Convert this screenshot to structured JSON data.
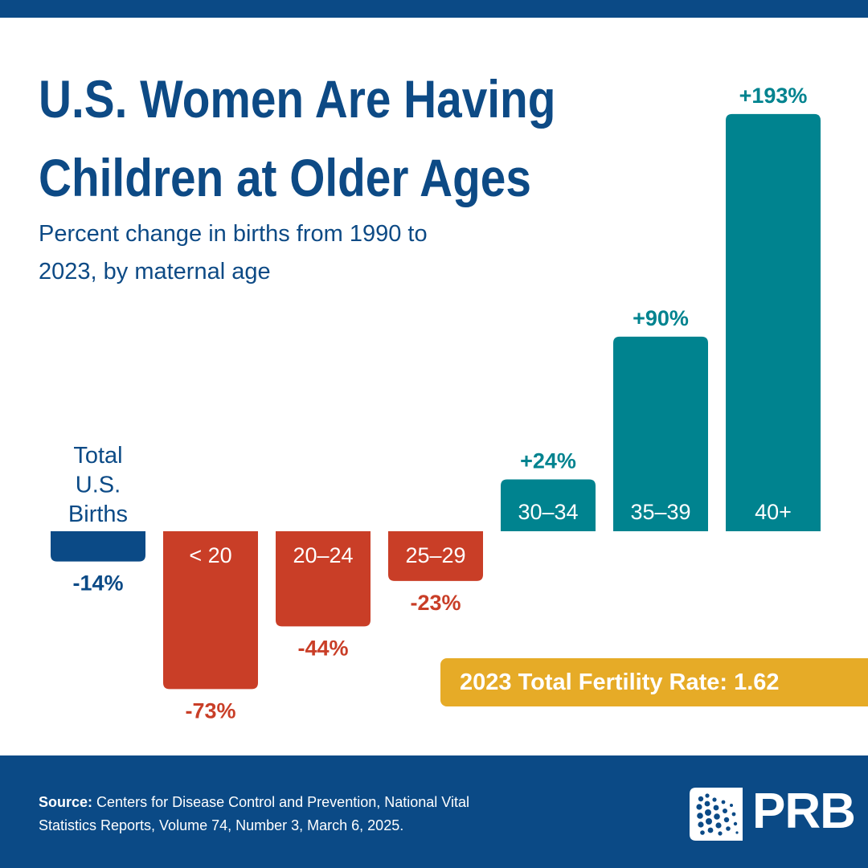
{
  "title": {
    "line1": "U.S. Women Are Having",
    "line2": "Children at Older Ages"
  },
  "subtitle": {
    "line1": "Percent change in births from 1990 to",
    "line2": "2023, by maternal age"
  },
  "chart_data": {
    "type": "bar",
    "categories": [
      "Total U.S. Births",
      "< 20",
      "20–24",
      "25–29",
      "30–34",
      "35–39",
      "40+"
    ],
    "category_lines": [
      [
        "Total",
        "U.S.",
        "Births"
      ],
      [
        "< 20"
      ],
      [
        "20–24"
      ],
      [
        "25–29"
      ],
      [
        "30–34"
      ],
      [
        "35–39"
      ],
      [
        "40+"
      ]
    ],
    "values": [
      -14,
      -73,
      -44,
      -23,
      24,
      90,
      193
    ],
    "value_labels": [
      "-14%",
      "-73%",
      "-44%",
      "-23%",
      "+24%",
      "+90%",
      "+193%"
    ],
    "ylim": [
      -80,
      200
    ],
    "grid": false,
    "legend": "none",
    "colors": {
      "total": "#0b4a86",
      "negative": "#c93e27",
      "positive": "#00838f"
    }
  },
  "fertility_badge": {
    "text": "2023 Total Fertility Rate: 1.62",
    "color": "#e6ab27"
  },
  "footer": {
    "source_label": "Source:",
    "source_line1": "Centers for Disease Control and Prevention, National Vital",
    "source_line2": "Statistics Reports, Volume 74, Number 3, March 6, 2025.",
    "logo_text": "PRB"
  }
}
